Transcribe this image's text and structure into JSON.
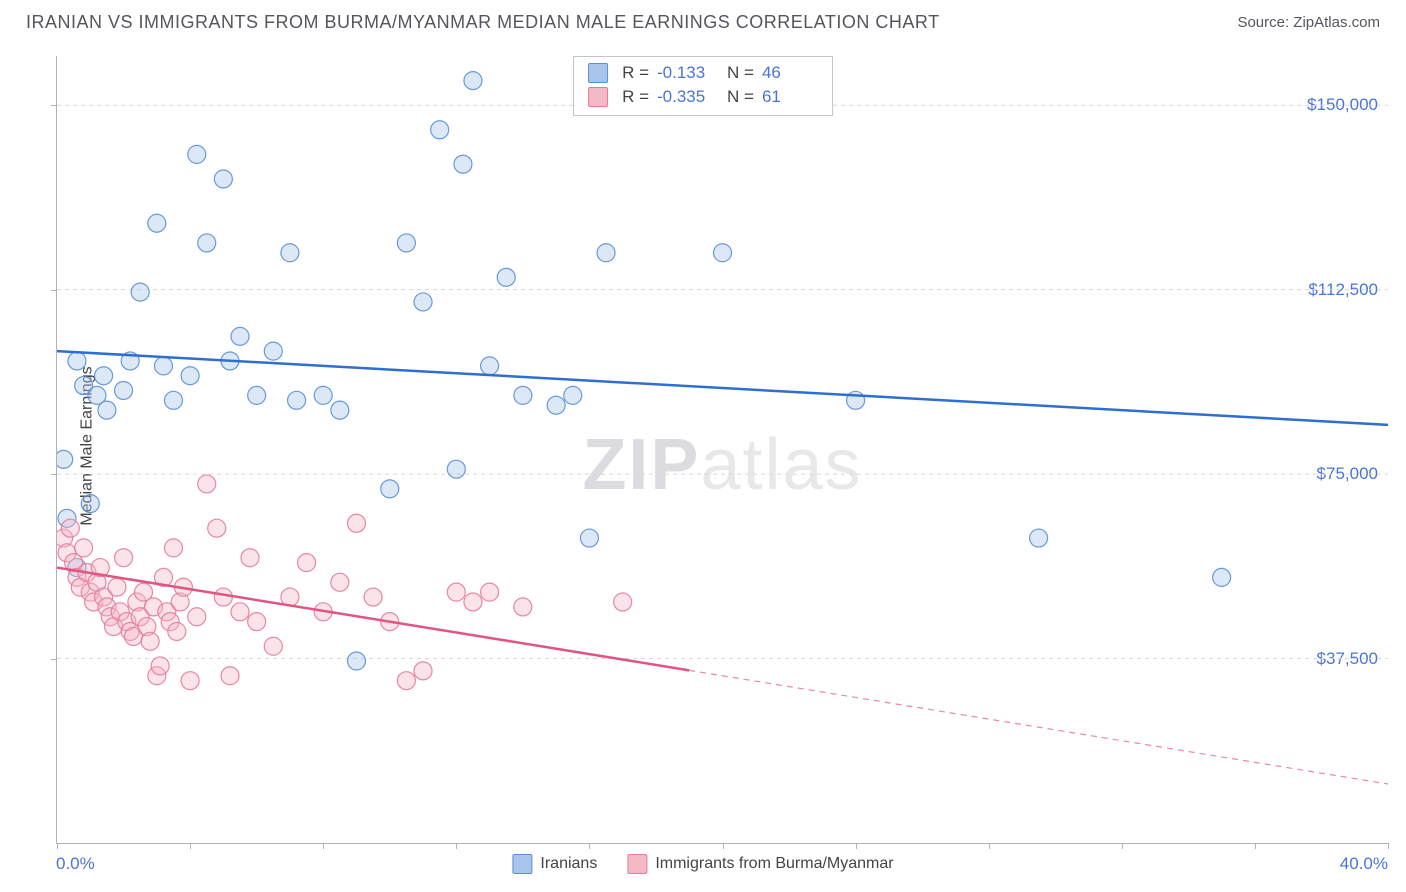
{
  "header": {
    "title": "IRANIAN VS IMMIGRANTS FROM BURMA/MYANMAR MEDIAN MALE EARNINGS CORRELATION CHART",
    "source": "Source: ZipAtlas.com"
  },
  "chart": {
    "type": "scatter",
    "watermark": "ZIPatlas",
    "background_color": "#ffffff",
    "grid_color": "#d8d8dc",
    "axis_color": "#b0b0b8",
    "tick_label_color": "#4a74d8",
    "axis_title_color": "#444448",
    "yaxis_title": "Median Male Earnings",
    "xlim": [
      0,
      40
    ],
    "ylim": [
      0,
      160000
    ],
    "yticks": [
      {
        "v": 37500,
        "label": "$37,500"
      },
      {
        "v": 75000,
        "label": "$75,000"
      },
      {
        "v": 112500,
        "label": "$112,500"
      },
      {
        "v": 150000,
        "label": "$150,000"
      }
    ],
    "xtick_positions": [
      0,
      4,
      8,
      12,
      16,
      20,
      24,
      28,
      32,
      36,
      40
    ],
    "xaxis_min_label": "0.0%",
    "xaxis_max_label": "40.0%",
    "marker_radius": 9,
    "marker_opacity": 0.4,
    "marker_stroke_opacity": 0.9,
    "line_width": 2.5,
    "series": [
      {
        "name": "Iranians",
        "color_fill": "#a9c5ec",
        "color_stroke": "#5a8fd6",
        "line_color": "#2d6fd0",
        "R": "-0.133",
        "N": "46",
        "regression": {
          "x1": 0,
          "y1": 100000,
          "x2": 40,
          "y2": 85000,
          "solid_until_x": 40
        },
        "points": [
          [
            0.2,
            78000
          ],
          [
            0.3,
            66000
          ],
          [
            0.6,
            56000
          ],
          [
            0.6,
            98000
          ],
          [
            0.8,
            93000
          ],
          [
            1.0,
            69000
          ],
          [
            1.2,
            91000
          ],
          [
            1.4,
            95000
          ],
          [
            1.5,
            88000
          ],
          [
            2.0,
            92000
          ],
          [
            2.2,
            98000
          ],
          [
            2.5,
            112000
          ],
          [
            3.0,
            126000
          ],
          [
            3.2,
            97000
          ],
          [
            3.5,
            90000
          ],
          [
            4.0,
            95000
          ],
          [
            4.2,
            140000
          ],
          [
            4.5,
            122000
          ],
          [
            5.0,
            135000
          ],
          [
            5.2,
            98000
          ],
          [
            5.5,
            103000
          ],
          [
            6.0,
            91000
          ],
          [
            6.5,
            100000
          ],
          [
            7.0,
            120000
          ],
          [
            7.2,
            90000
          ],
          [
            8.0,
            91000
          ],
          [
            8.5,
            88000
          ],
          [
            9.0,
            37000
          ],
          [
            10.0,
            72000
          ],
          [
            10.5,
            122000
          ],
          [
            11.0,
            110000
          ],
          [
            11.5,
            145000
          ],
          [
            12.0,
            76000
          ],
          [
            12.2,
            138000
          ],
          [
            12.5,
            155000
          ],
          [
            13.0,
            97000
          ],
          [
            13.5,
            115000
          ],
          [
            14.0,
            91000
          ],
          [
            15.0,
            89000
          ],
          [
            15.5,
            91000
          ],
          [
            16.0,
            62000
          ],
          [
            16.5,
            120000
          ],
          [
            20.0,
            120000
          ],
          [
            24.0,
            90000
          ],
          [
            29.5,
            62000
          ],
          [
            35.0,
            54000
          ]
        ]
      },
      {
        "name": "Immigrants from Burma/Myanmar",
        "color_fill": "#f3b9c7",
        "color_stroke": "#e77a99",
        "line_color": "#e05581",
        "R": "-0.335",
        "N": "61",
        "regression": {
          "x1": 0,
          "y1": 56000,
          "x2": 40,
          "y2": 12000,
          "solid_until_x": 19
        },
        "points": [
          [
            0.2,
            62000
          ],
          [
            0.3,
            59000
          ],
          [
            0.4,
            64000
          ],
          [
            0.5,
            57000
          ],
          [
            0.6,
            54000
          ],
          [
            0.7,
            52000
          ],
          [
            0.8,
            60000
          ],
          [
            0.9,
            55000
          ],
          [
            1.0,
            51000
          ],
          [
            1.1,
            49000
          ],
          [
            1.2,
            53000
          ],
          [
            1.3,
            56000
          ],
          [
            1.4,
            50000
          ],
          [
            1.5,
            48000
          ],
          [
            1.6,
            46000
          ],
          [
            1.7,
            44000
          ],
          [
            1.8,
            52000
          ],
          [
            1.9,
            47000
          ],
          [
            2.0,
            58000
          ],
          [
            2.1,
            45000
          ],
          [
            2.2,
            43000
          ],
          [
            2.3,
            42000
          ],
          [
            2.4,
            49000
          ],
          [
            2.5,
            46000
          ],
          [
            2.6,
            51000
          ],
          [
            2.7,
            44000
          ],
          [
            2.8,
            41000
          ],
          [
            2.9,
            48000
          ],
          [
            3.0,
            34000
          ],
          [
            3.1,
            36000
          ],
          [
            3.2,
            54000
          ],
          [
            3.3,
            47000
          ],
          [
            3.4,
            45000
          ],
          [
            3.5,
            60000
          ],
          [
            3.6,
            43000
          ],
          [
            3.7,
            49000
          ],
          [
            3.8,
            52000
          ],
          [
            4.0,
            33000
          ],
          [
            4.2,
            46000
          ],
          [
            4.5,
            73000
          ],
          [
            4.8,
            64000
          ],
          [
            5.0,
            50000
          ],
          [
            5.2,
            34000
          ],
          [
            5.5,
            47000
          ],
          [
            5.8,
            58000
          ],
          [
            6.0,
            45000
          ],
          [
            6.5,
            40000
          ],
          [
            7.0,
            50000
          ],
          [
            7.5,
            57000
          ],
          [
            8.0,
            47000
          ],
          [
            8.5,
            53000
          ],
          [
            9.0,
            65000
          ],
          [
            9.5,
            50000
          ],
          [
            10.0,
            45000
          ],
          [
            10.5,
            33000
          ],
          [
            11.0,
            35000
          ],
          [
            12.0,
            51000
          ],
          [
            12.5,
            49000
          ],
          [
            13.0,
            51000
          ],
          [
            14.0,
            48000
          ],
          [
            17.0,
            49000
          ]
        ]
      }
    ],
    "legend_bottom": [
      {
        "label": "Iranians",
        "series": 0
      },
      {
        "label": "Immigrants from Burma/Myanmar",
        "series": 1
      }
    ]
  }
}
